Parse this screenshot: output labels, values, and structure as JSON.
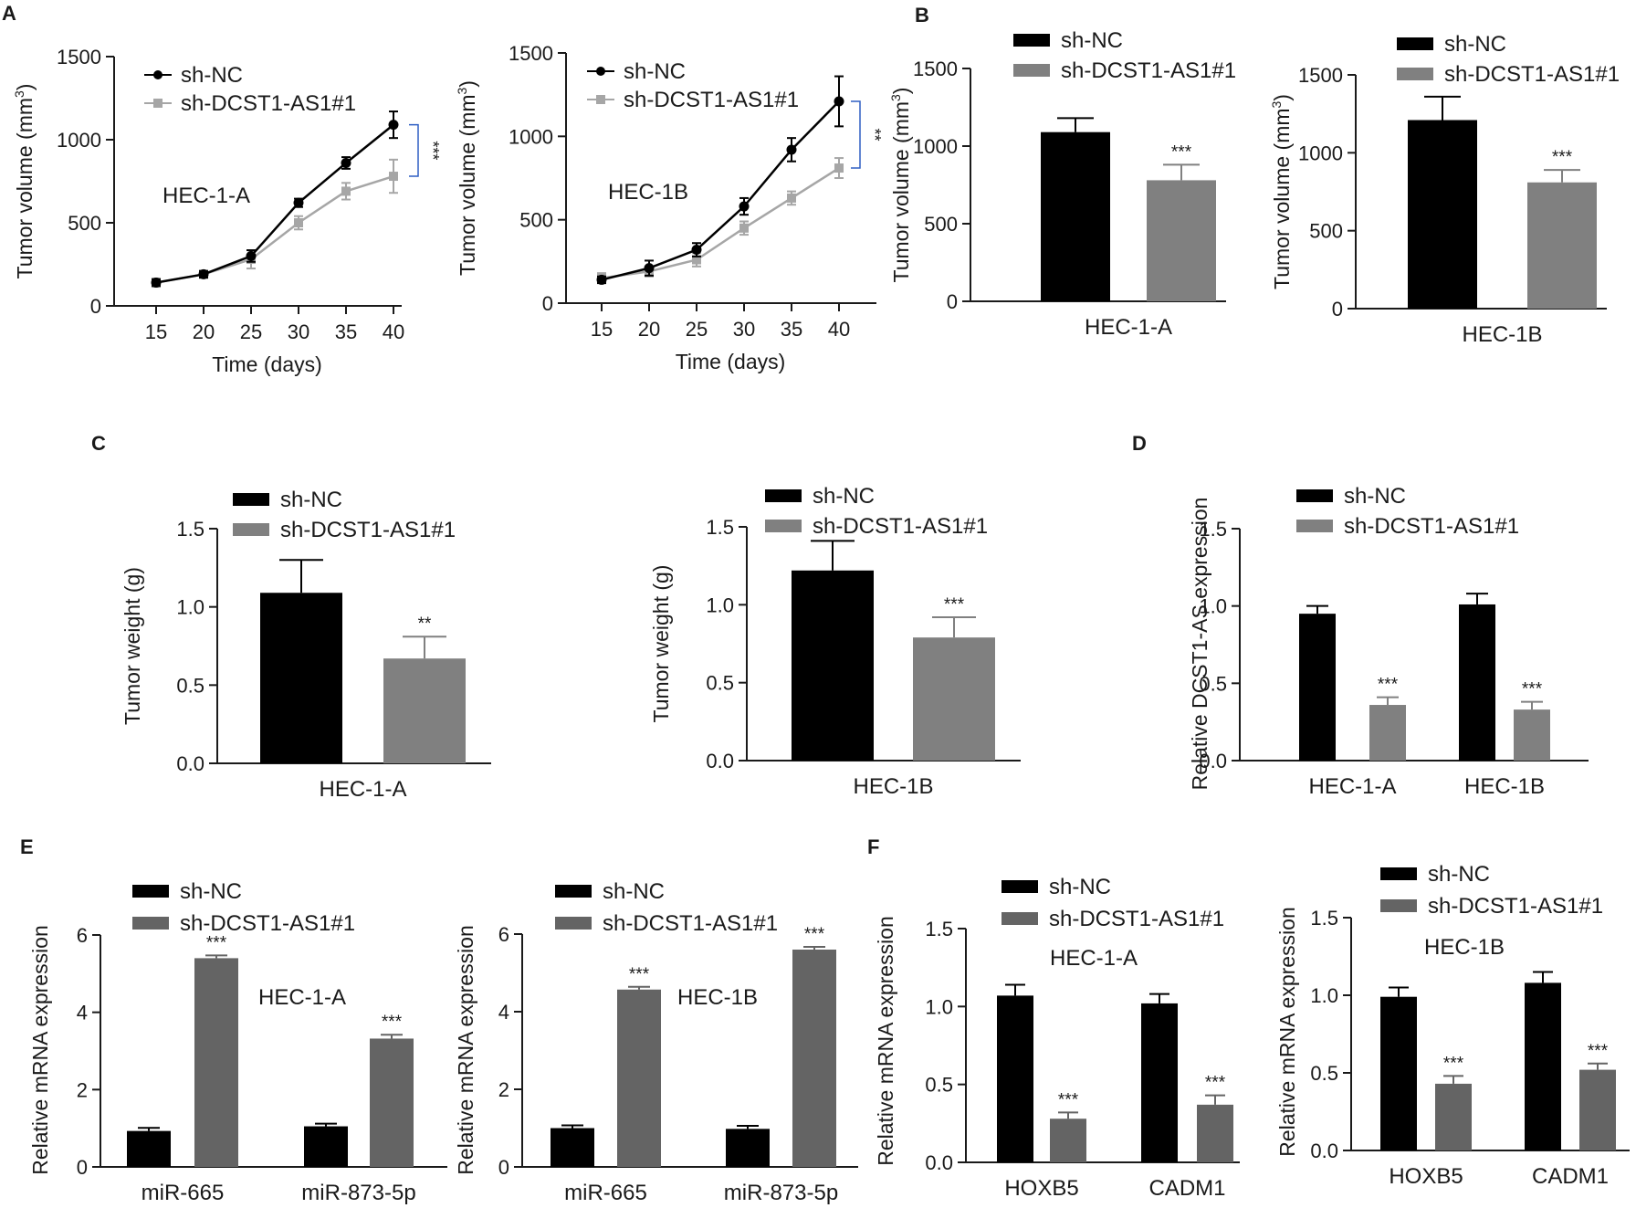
{
  "figure": {
    "colors": {
      "sh_nc": "#000000",
      "sh_kd_bar": "#808080",
      "sh_kd_line": "#a6a6a6",
      "sh_kd_dark": "#646464",
      "axis": "#1a1a1a",
      "bracket": "#2f5fc4"
    }
  },
  "chart_data": [
    {
      "panel": "A",
      "type": "line",
      "cell_label": "HEC-1-A",
      "xlabel": "Time (days)",
      "ylabel": "Tumor volume (mm3)",
      "x": [
        15,
        20,
        25,
        30,
        35,
        40
      ],
      "xticks": [
        "15",
        "20",
        "25",
        "30",
        "35",
        "40"
      ],
      "ylim": [
        0,
        1500
      ],
      "yticks": [
        "0",
        "500",
        "1000",
        "1500"
      ],
      "series": [
        {
          "name": "sh-NC",
          "values": [
            140,
            190,
            300,
            620,
            860,
            1090
          ],
          "err": [
            20,
            20,
            35,
            25,
            35,
            80
          ]
        },
        {
          "name": "sh-DCST1-AS1#1",
          "values": [
            140,
            190,
            280,
            500,
            690,
            780
          ],
          "err": [
            25,
            20,
            55,
            40,
            50,
            100
          ]
        }
      ],
      "significance": "***"
    },
    {
      "panel": "",
      "type": "line",
      "cell_label": "HEC-1B",
      "xlabel": "Time (days)",
      "ylabel": "Tumor volume (mm3)",
      "x": [
        15,
        20,
        25,
        30,
        35,
        40
      ],
      "xticks": [
        "15",
        "20",
        "25",
        "30",
        "35",
        "40"
      ],
      "ylim": [
        0,
        1500
      ],
      "yticks": [
        "0",
        "500",
        "1000",
        "1500"
      ],
      "series": [
        {
          "name": "sh-NC",
          "values": [
            140,
            210,
            320,
            580,
            920,
            1210
          ],
          "err": [
            20,
            45,
            40,
            50,
            70,
            150
          ]
        },
        {
          "name": "sh-DCST1-AS1#1",
          "values": [
            150,
            190,
            260,
            450,
            630,
            810
          ],
          "err": [
            30,
            30,
            40,
            40,
            40,
            60
          ]
        }
      ],
      "significance": "**"
    },
    {
      "panel": "B",
      "type": "bar",
      "ylabel": "Tumor volume (mm3)",
      "categories": [
        "HEC-1-A"
      ],
      "ylim": [
        0,
        1500
      ],
      "yticks": [
        "0",
        "500",
        "1000",
        "1500"
      ],
      "series": [
        {
          "name": "sh-NC",
          "values": [
            1090
          ],
          "err": [
            90
          ]
        },
        {
          "name": "sh-DCST1-AS1#1",
          "values": [
            780
          ],
          "err": [
            100
          ],
          "sig": [
            "***"
          ]
        }
      ]
    },
    {
      "panel": "",
      "type": "bar",
      "ylabel": "Tumor volume (mm3)",
      "categories": [
        "HEC-1B"
      ],
      "ylim": [
        0,
        1500
      ],
      "yticks": [
        "0",
        "500",
        "1000",
        "1500"
      ],
      "series": [
        {
          "name": "sh-NC",
          "values": [
            1210
          ],
          "err": [
            150
          ]
        },
        {
          "name": "sh-DCST1-AS1#1",
          "values": [
            810
          ],
          "err": [
            80
          ],
          "sig": [
            "***"
          ]
        }
      ]
    },
    {
      "panel": "C",
      "type": "bar",
      "ylabel": "Tumor weight (g)",
      "categories": [
        "HEC-1-A"
      ],
      "ylim": [
        0,
        1.5
      ],
      "yticks": [
        "0.0",
        "0.5",
        "1.0",
        "1.5"
      ],
      "series": [
        {
          "name": "sh-NC",
          "values": [
            1.09
          ],
          "err": [
            0.21
          ]
        },
        {
          "name": "sh-DCST1-AS1#1",
          "values": [
            0.67
          ],
          "err": [
            0.14
          ],
          "sig": [
            "**"
          ]
        }
      ]
    },
    {
      "panel": "",
      "type": "bar",
      "ylabel": "Tumor weight (g)",
      "categories": [
        "HEC-1B"
      ],
      "ylim": [
        0,
        1.5
      ],
      "yticks": [
        "0.0",
        "0.5",
        "1.0",
        "1.5"
      ],
      "series": [
        {
          "name": "sh-NC",
          "values": [
            1.22
          ],
          "err": [
            0.19
          ]
        },
        {
          "name": "sh-DCST1-AS1#1",
          "values": [
            0.79
          ],
          "err": [
            0.13
          ],
          "sig": [
            "***"
          ]
        }
      ]
    },
    {
      "panel": "D",
      "type": "bar",
      "ylabel": "Relative DCST1-AS expression",
      "categories": [
        "HEC-1-A",
        "HEC-1B"
      ],
      "ylim": [
        0,
        1.5
      ],
      "yticks": [
        "0.0",
        "0.5",
        "1.0",
        "1.5"
      ],
      "series": [
        {
          "name": "sh-NC",
          "values": [
            0.95,
            1.01
          ],
          "err": [
            0.05,
            0.07
          ]
        },
        {
          "name": "sh-DCST1-AS1#1",
          "values": [
            0.36,
            0.33
          ],
          "err": [
            0.05,
            0.05
          ],
          "sig": [
            "***",
            "***"
          ]
        }
      ]
    },
    {
      "panel": "E",
      "type": "bar",
      "ylabel": "Relative mRNA expression",
      "cell_label": "HEC-1-A",
      "categories": [
        "miR-665",
        "miR-873-5p"
      ],
      "ylim": [
        0,
        6
      ],
      "yticks": [
        "0",
        "2",
        "4",
        "6"
      ],
      "series": [
        {
          "name": "sh-NC",
          "values": [
            0.93,
            1.05
          ],
          "err": [
            0.08,
            0.07
          ]
        },
        {
          "name": "sh-DCST1-AS1#1",
          "values": [
            5.4,
            3.32
          ],
          "err": [
            0.07,
            0.1
          ],
          "sig": [
            "***",
            "***"
          ]
        }
      ]
    },
    {
      "panel": "",
      "type": "bar",
      "ylabel": "Relative mRNA expression",
      "cell_label": "HEC-1B",
      "categories": [
        "miR-665",
        "miR-873-5p"
      ],
      "ylim": [
        0,
        6
      ],
      "yticks": [
        "0",
        "2",
        "4",
        "6"
      ],
      "series": [
        {
          "name": "sh-NC",
          "values": [
            1.0,
            0.98
          ],
          "err": [
            0.07,
            0.08
          ]
        },
        {
          "name": "sh-DCST1-AS1#1",
          "values": [
            4.57,
            5.6
          ],
          "err": [
            0.07,
            0.07
          ],
          "sig": [
            "***",
            "***"
          ]
        }
      ]
    },
    {
      "panel": "F",
      "type": "bar",
      "ylabel": "Relative mRNA expression",
      "cell_label": "HEC-1-A",
      "categories": [
        "HOXB5",
        "CADM1"
      ],
      "ylim": [
        0,
        1.5
      ],
      "yticks": [
        "0.0",
        "0.5",
        "1.0",
        "1.5"
      ],
      "series": [
        {
          "name": "sh-NC",
          "values": [
            1.07,
            1.02
          ],
          "err": [
            0.07,
            0.06
          ]
        },
        {
          "name": "sh-DCST1-AS1#1",
          "values": [
            0.28,
            0.37
          ],
          "err": [
            0.04,
            0.06
          ],
          "sig": [
            "***",
            "***"
          ]
        }
      ]
    },
    {
      "panel": "",
      "type": "bar",
      "ylabel": "Relative mRNA expression",
      "cell_label": "HEC-1B",
      "categories": [
        "HOXB5",
        "CADM1"
      ],
      "ylim": [
        0,
        1.5
      ],
      "yticks": [
        "0.0",
        "0.5",
        "1.0",
        "1.5"
      ],
      "series": [
        {
          "name": "sh-NC",
          "values": [
            0.99,
            1.08
          ],
          "err": [
            0.06,
            0.07
          ]
        },
        {
          "name": "sh-DCST1-AS1#1",
          "values": [
            0.43,
            0.52
          ],
          "err": [
            0.05,
            0.04
          ],
          "sig": [
            "***",
            "***"
          ]
        }
      ]
    }
  ]
}
